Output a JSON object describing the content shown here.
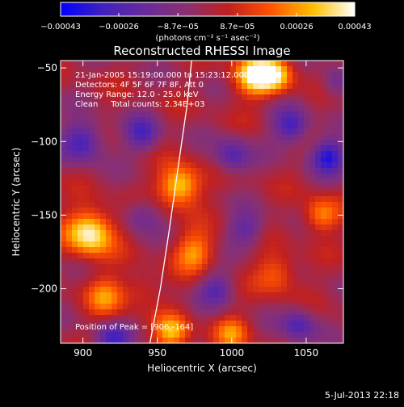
{
  "chart_data": {
    "type": "heatmap",
    "title": "Reconstructed RHESSI Image",
    "xlabel": "Heliocentric X (arcsec)",
    "ylabel": "Heliocentric Y (arcsec)",
    "xlim": [
      885,
      1075
    ],
    "ylim": [
      -237,
      -45
    ],
    "x_ticks": [
      900,
      950,
      1000,
      1050
    ],
    "y_ticks": [
      -50,
      -100,
      -150,
      -200
    ],
    "x_tick_labels": [
      "900",
      "950",
      "1000",
      "1050"
    ],
    "y_tick_labels": [
      "−50",
      "−100",
      "−150",
      "−200"
    ],
    "colorbar": {
      "range": [
        -0.00043,
        0.00043
      ],
      "ticks": [
        -0.00043,
        -0.00026,
        -8.7e-05,
        8.7e-05,
        0.00026,
        0.00043
      ],
      "tick_labels": [
        "−0.00043",
        "−0.00026",
        "−8.7e−05",
        "8.7e−05",
        "0.00026",
        "0.00043"
      ],
      "units_label": "(photons cm⁻² s⁻¹ asec⁻²)",
      "colors": [
        "#0000ff",
        "#4020c0",
        "#6a2a9a",
        "#8a3070",
        "#c02020",
        "#ff5000",
        "#ffc000",
        "#ffffff"
      ]
    },
    "annotations": [
      "21-Jan-2005 15:19:00.000 to 15:23:12.000",
      "Detectors: 4F 5F 6F 7F 8F, Att 0",
      "Energy Range: 12.0 - 25.0 keV",
      "Clean     Total counts: 2.34E+03"
    ],
    "peak_label": "Position of Peak = [906,-164]",
    "peak": [
      906,
      -164
    ],
    "limb_curve": [
      [
        945,
        -237
      ],
      [
        952,
        -200
      ],
      [
        958,
        -160
      ],
      [
        965,
        -110
      ],
      [
        970,
        -75
      ],
      [
        973,
        -45
      ]
    ],
    "blobs": [
      {
        "x": 905,
        "y": -162,
        "v": 1.0,
        "r": 16
      },
      {
        "x": 965,
        "y": -130,
        "v": 0.9,
        "r": 14
      },
      {
        "x": 1015,
        "y": -55,
        "v": 0.9,
        "r": 14
      },
      {
        "x": 1030,
        "y": -55,
        "v": 0.7,
        "r": 12
      },
      {
        "x": 915,
        "y": -205,
        "v": 0.5,
        "r": 14
      },
      {
        "x": 960,
        "y": -230,
        "v": 0.7,
        "r": 12
      },
      {
        "x": 975,
        "y": -175,
        "v": 0.6,
        "r": 14
      },
      {
        "x": 1030,
        "y": -190,
        "v": 0.5,
        "r": 14
      },
      {
        "x": 1060,
        "y": -150,
        "v": 0.6,
        "r": 12
      },
      {
        "x": 1000,
        "y": -230,
        "v": 0.5,
        "r": 12
      },
      {
        "x": 940,
        "y": -200,
        "v": 0.3,
        "r": 12
      },
      {
        "x": 900,
        "y": -100,
        "v": -0.7,
        "r": 14
      },
      {
        "x": 940,
        "y": -95,
        "v": -0.6,
        "r": 12
      },
      {
        "x": 1000,
        "y": -110,
        "v": -0.6,
        "r": 12
      },
      {
        "x": 1040,
        "y": -90,
        "v": -0.7,
        "r": 12
      },
      {
        "x": 1065,
        "y": -110,
        "v": -0.8,
        "r": 12
      },
      {
        "x": 1010,
        "y": -160,
        "v": -0.5,
        "r": 12
      },
      {
        "x": 920,
        "y": -235,
        "v": -0.6,
        "r": 12
      },
      {
        "x": 1045,
        "y": -225,
        "v": -0.6,
        "r": 12
      },
      {
        "x": 990,
        "y": -200,
        "v": -0.5,
        "r": 12
      },
      {
        "x": 940,
        "y": -150,
        "v": -0.4,
        "r": 12
      },
      {
        "x": 1070,
        "y": -60,
        "v": -0.4,
        "r": 10
      }
    ]
  },
  "footer": {
    "timestamp": "5-Jul-2013 22:18"
  }
}
